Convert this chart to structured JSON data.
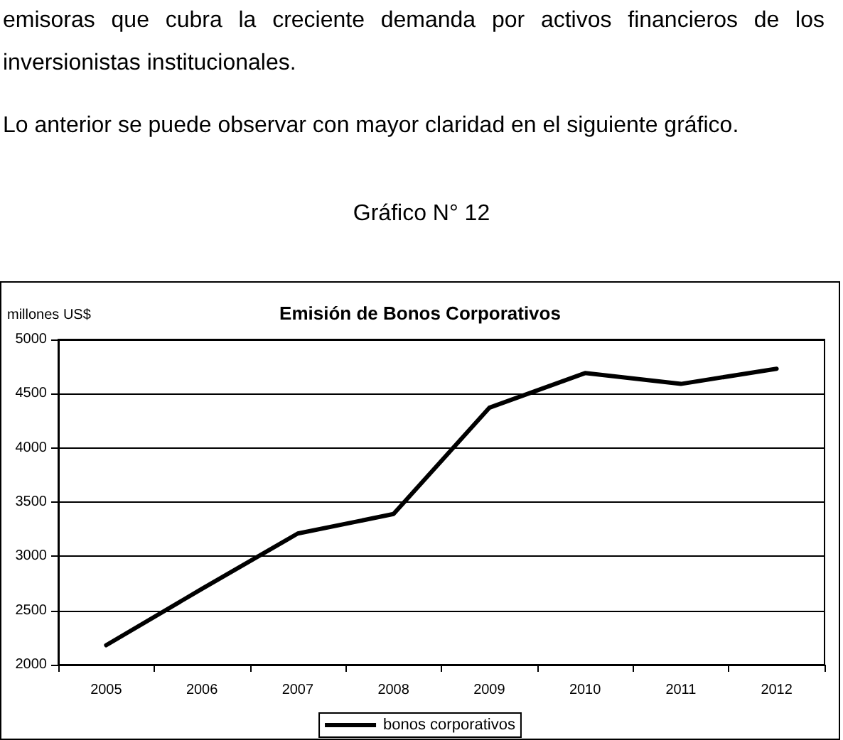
{
  "chart_data": {
    "type": "line",
    "title": "Emisión de Bonos Corporativos",
    "ylabel": "millones US$",
    "annotations": [
      "emisoras que cubra la creciente demanda por activos financieros de los inversionistas institucionales.",
      "Lo anterior se puede observar con mayor claridad en el siguiente gráfico.",
      "Gráfico N° 12"
    ],
    "categories": [
      "2005",
      "2006",
      "2007",
      "2008",
      "2009",
      "2010",
      "2011",
      "2012"
    ],
    "series": [
      {
        "name": "bonos corporativos",
        "color": "#000000",
        "values": [
          2180,
          2700,
          3210,
          3390,
          4370,
          4690,
          4590,
          4730
        ]
      }
    ],
    "ylim": [
      2000,
      5000
    ],
    "yticks": [
      2000,
      2500,
      3000,
      3500,
      4000,
      4500,
      5000
    ],
    "grid": "y",
    "legend": "bottom",
    "marker": "none",
    "line_style": "solid"
  }
}
